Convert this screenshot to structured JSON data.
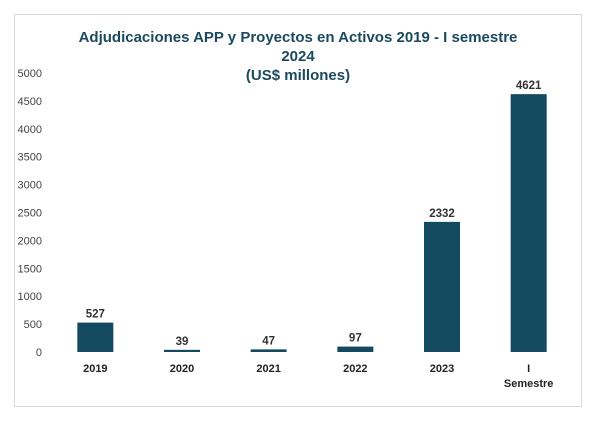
{
  "chart_data": {
    "type": "bar",
    "title_lines": [
      "Adjudicaciones APP y Proyectos en Activos 2019 - I semestre",
      "2024",
      "(US$ millones)"
    ],
    "categories": [
      "2019",
      "2020",
      "2021",
      "2022",
      "2023",
      "I Semestre"
    ],
    "category_label_lines": [
      [
        "2019"
      ],
      [
        "2020"
      ],
      [
        "2021"
      ],
      [
        "2022"
      ],
      [
        "2023"
      ],
      [
        "I",
        "Semestre"
      ]
    ],
    "values": [
      527,
      39,
      47,
      97,
      2332,
      4621
    ],
    "data_labels": [
      "527",
      "39",
      "47",
      "97",
      "2332",
      "4621"
    ],
    "yticks": [
      "0",
      "500",
      "1000",
      "1500",
      "2000",
      "2500",
      "3000",
      "3500",
      "4000",
      "4500",
      "5000"
    ],
    "ylim": [
      0,
      5000
    ],
    "grid": false,
    "legend": "none",
    "bar_color": "#134a5f",
    "title_color": "#1b4a5e"
  }
}
